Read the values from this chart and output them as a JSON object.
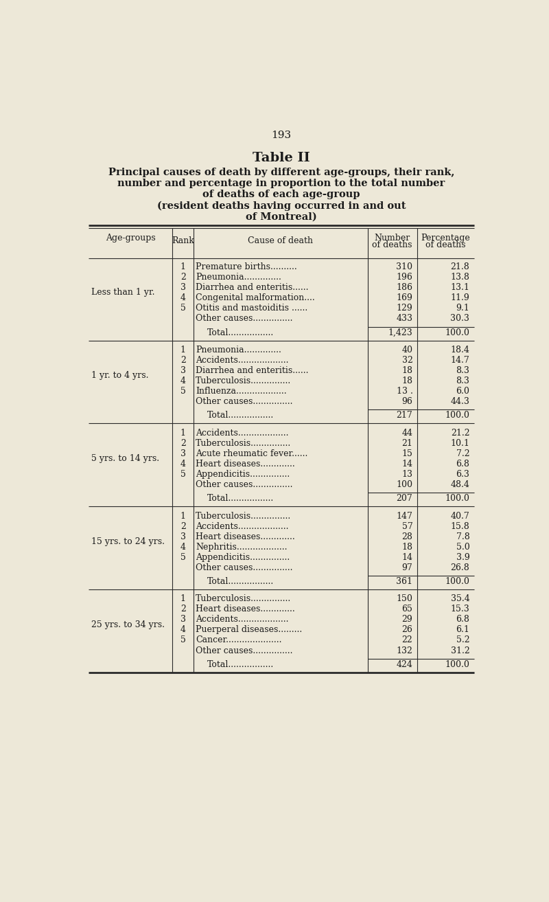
{
  "page_number": "193",
  "title_line1": "Table II",
  "title_line2": "Principal causes of death by different age-groups, their rank,",
  "title_line3": "number and percentage in proportion to the total number",
  "title_line4": "of deaths of each age-group",
  "title_line5": "(resident deaths having occurred in and out",
  "title_line6": "of Montreal)",
  "bg_color": "#ede8d8",
  "groups": [
    {
      "age_group": "Less than 1 yr.",
      "rows": [
        {
          "rank": "1",
          "cause": "Premature births..........",
          "number": "310",
          "pct": "21.8"
        },
        {
          "rank": "2",
          "cause": "Pneumonia..............",
          "number": "196",
          "pct": "13.8"
        },
        {
          "rank": "3",
          "cause": "Diarrhea and enteritis......",
          "number": "186",
          "pct": "13.1"
        },
        {
          "rank": "4",
          "cause": "Congenital malformation....",
          "number": "169",
          "pct": "11.9"
        },
        {
          "rank": "5",
          "cause": "Otitis and mastoiditis ......",
          "number": "129",
          "pct": "9.1"
        },
        {
          "rank": "",
          "cause": "Other causes...............",
          "number": "433",
          "pct": "30.3"
        }
      ],
      "total_number": "1,423",
      "total_pct": "100.0"
    },
    {
      "age_group": "1 yr. to 4 yrs.",
      "rows": [
        {
          "rank": "1",
          "cause": "Pneumonia..............",
          "number": "40",
          "pct": "18.4"
        },
        {
          "rank": "2",
          "cause": "Accidents...................",
          "number": "32",
          "pct": "14.7"
        },
        {
          "rank": "3",
          "cause": "Diarrhea and enteritis......",
          "number": "18",
          "pct": "8.3"
        },
        {
          "rank": "4",
          "cause": "Tuberculosis...............",
          "number": "18",
          "pct": "8.3"
        },
        {
          "rank": "5",
          "cause": "Influenza...................",
          "number": "13 .",
          "pct": "6.0"
        },
        {
          "rank": "",
          "cause": "Other causes...............",
          "number": "96",
          "pct": "44.3"
        }
      ],
      "total_number": "217",
      "total_pct": "100.0"
    },
    {
      "age_group": "5 yrs. to 14 yrs.",
      "rows": [
        {
          "rank": "1",
          "cause": "Accidents...................",
          "number": "44",
          "pct": "21.2"
        },
        {
          "rank": "2",
          "cause": "Tuberculosis...............",
          "number": "21",
          "pct": "10.1"
        },
        {
          "rank": "3",
          "cause": "Acute rheumatic fever......",
          "number": "15",
          "pct": "7.2"
        },
        {
          "rank": "4",
          "cause": "Heart diseases.............",
          "number": "14",
          "pct": "6.8"
        },
        {
          "rank": "5",
          "cause": "Appendicitis...............",
          "number": "13",
          "pct": "6.3"
        },
        {
          "rank": "",
          "cause": "Other causes...............",
          "number": "100",
          "pct": "48.4"
        }
      ],
      "total_number": "207",
      "total_pct": "100.0"
    },
    {
      "age_group": "15 yrs. to 24 yrs.",
      "rows": [
        {
          "rank": "1",
          "cause": "Tuberculosis...............",
          "number": "147",
          "pct": "40.7"
        },
        {
          "rank": "2",
          "cause": "Accidents...................",
          "number": "57",
          "pct": "15.8"
        },
        {
          "rank": "3",
          "cause": "Heart diseases.............",
          "number": "28",
          "pct": "7.8"
        },
        {
          "rank": "4",
          "cause": "Nephritis...................",
          "number": "18",
          "pct": "5.0"
        },
        {
          "rank": "5",
          "cause": "Appendicitis...............",
          "number": "14",
          "pct": "3.9"
        },
        {
          "rank": "",
          "cause": "Other causes...............",
          "number": "97",
          "pct": "26.8"
        }
      ],
      "total_number": "361",
      "total_pct": "100.0"
    },
    {
      "age_group": "25 yrs. to 34 yrs.",
      "rows": [
        {
          "rank": "1",
          "cause": "Tuberculosis...............",
          "number": "150",
          "pct": "35.4"
        },
        {
          "rank": "2",
          "cause": "Heart diseases.............",
          "number": "65",
          "pct": "15.3"
        },
        {
          "rank": "3",
          "cause": "Accidents...................",
          "number": "29",
          "pct": "6.8"
        },
        {
          "rank": "4",
          "cause": "Puerperal diseases.........",
          "number": "26",
          "pct": "6.1"
        },
        {
          "rank": "5",
          "cause": "Cancer.....................",
          "number": "22",
          "pct": "5.2"
        },
        {
          "rank": "",
          "cause": "Other causes...............",
          "number": "132",
          "pct": "31.2"
        }
      ],
      "total_number": "424",
      "total_pct": "100.0"
    }
  ]
}
